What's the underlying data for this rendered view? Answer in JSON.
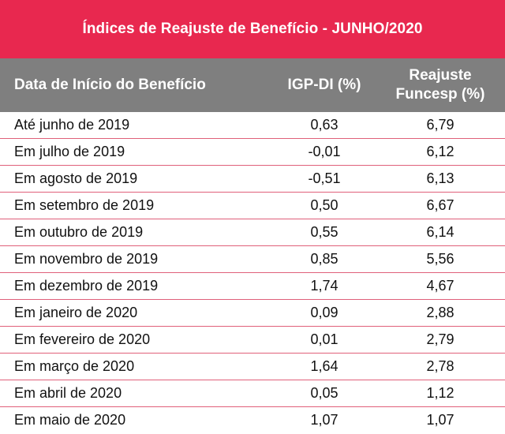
{
  "title": "Índices de Reajuste de Benefício - JUNHO/2020",
  "colors": {
    "title_bg": "#e8284f",
    "header_bg": "#7f7f7f",
    "row_divider": "#e0607a"
  },
  "header": {
    "col1": "Data de Início do Benefício",
    "col2": "IGP-DI (%)",
    "col3_line1": "Reajuste",
    "col3_line2": "Funcesp (%)"
  },
  "rows": [
    {
      "label": "Até junho de 2019",
      "igpdi": "0,63",
      "reajuste": "6,79"
    },
    {
      "label": "Em julho de 2019",
      "igpdi": "-0,01",
      "reajuste": "6,12"
    },
    {
      "label": "Em agosto de 2019",
      "igpdi": "-0,51",
      "reajuste": "6,13"
    },
    {
      "label": "Em setembro de 2019",
      "igpdi": "0,50",
      "reajuste": "6,67"
    },
    {
      "label": "Em outubro de 2019",
      "igpdi": "0,55",
      "reajuste": "6,14"
    },
    {
      "label": "Em novembro de 2019",
      "igpdi": "0,85",
      "reajuste": "5,56"
    },
    {
      "label": "Em dezembro de 2019",
      "igpdi": "1,74",
      "reajuste": "4,67"
    },
    {
      "label": "Em janeiro de 2020",
      "igpdi": "0,09",
      "reajuste": "2,88"
    },
    {
      "label": "Em fevereiro de 2020",
      "igpdi": "0,01",
      "reajuste": "2,79"
    },
    {
      "label": "Em março de 2020",
      "igpdi": "1,64",
      "reajuste": "2,78"
    },
    {
      "label": "Em abril de 2020",
      "igpdi": "0,05",
      "reajuste": "1,12"
    },
    {
      "label": "Em maio de 2020",
      "igpdi": "1,07",
      "reajuste": "1,07"
    }
  ]
}
